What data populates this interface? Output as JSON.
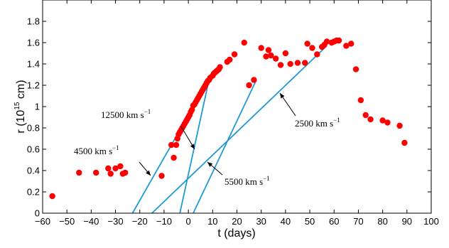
{
  "chart_data": {
    "type": "scatter",
    "xlabel": "t (days)",
    "ylabel": "r (10",
    "ylabel_exp": "15",
    "ylabel_unit": " cm)",
    "xlim": [
      -60,
      100
    ],
    "ylim": [
      0,
      2.0
    ],
    "x_ticks": [
      "-60",
      "-50",
      "-40",
      "-30",
      "-20",
      "-10",
      "0",
      "10",
      "20",
      "30",
      "40",
      "50",
      "60",
      "70",
      "80",
      "90",
      "100"
    ],
    "y_ticks": [
      "0",
      "0.2",
      "0.4",
      "0.6",
      "0.8",
      "1",
      "1.2",
      "1.4",
      "1.6",
      "1.8"
    ],
    "grid": false,
    "colors": {
      "points": "#ff0000",
      "lines": "#1f9ad6",
      "axes": "#000000"
    },
    "series": [
      {
        "marker": "circle",
        "points": [
          [
            -56,
            0.16
          ],
          [
            -45,
            0.38
          ],
          [
            -38,
            0.38
          ],
          [
            -33,
            0.42
          ],
          [
            -32,
            0.37
          ],
          [
            -30,
            0.42
          ],
          [
            -28,
            0.44
          ],
          [
            -27,
            0.37
          ],
          [
            -26,
            0.38
          ],
          [
            -11,
            0.35
          ],
          [
            -7,
            0.64
          ],
          [
            -6,
            0.52
          ],
          [
            -5,
            0.64
          ],
          [
            -4.5,
            0.7
          ],
          [
            -4,
            0.74
          ],
          [
            -3.5,
            0.76
          ],
          [
            -3,
            0.78
          ],
          [
            -2.5,
            0.8
          ],
          [
            -2,
            0.82
          ],
          [
            -1.5,
            0.84
          ],
          [
            -1,
            0.86
          ],
          [
            -0.5,
            0.88
          ],
          [
            0,
            0.9
          ],
          [
            0.5,
            0.92
          ],
          [
            1,
            0.95
          ],
          [
            1.5,
            0.97
          ],
          [
            2,
            1.01
          ],
          [
            2.5,
            1.02
          ],
          [
            3,
            1.04
          ],
          [
            3.5,
            1.06
          ],
          [
            4,
            1.08
          ],
          [
            4.5,
            1.1
          ],
          [
            5,
            1.12
          ],
          [
            5.5,
            1.14
          ],
          [
            6,
            1.16
          ],
          [
            6.5,
            1.18
          ],
          [
            7,
            1.2
          ],
          [
            7.5,
            1.22
          ],
          [
            8,
            1.24
          ],
          [
            8.5,
            1.25
          ],
          [
            9,
            1.27
          ],
          [
            10,
            1.29
          ],
          [
            10.5,
            1.31
          ],
          [
            11,
            1.32
          ],
          [
            11.5,
            1.33
          ],
          [
            12,
            1.34
          ],
          [
            12.5,
            1.35
          ],
          [
            13,
            1.37
          ],
          [
            16,
            1.42
          ],
          [
            17,
            1.44
          ],
          [
            19,
            1.49
          ],
          [
            23,
            1.6
          ],
          [
            25,
            1.2
          ],
          [
            27,
            1.25
          ],
          [
            30,
            1.55
          ],
          [
            32,
            1.47
          ],
          [
            33,
            1.53
          ],
          [
            34,
            1.48
          ],
          [
            36,
            1.45
          ],
          [
            38,
            1.39
          ],
          [
            40,
            1.5
          ],
          [
            42,
            1.4
          ],
          [
            45,
            1.41
          ],
          [
            48,
            1.41
          ],
          [
            49,
            1.59
          ],
          [
            51,
            1.55
          ],
          [
            53,
            1.49
          ],
          [
            55,
            1.56
          ],
          [
            56,
            1.58
          ],
          [
            57,
            1.61
          ],
          [
            59,
            1.6
          ],
          [
            60,
            1.61
          ],
          [
            61,
            1.62
          ],
          [
            62,
            1.62
          ],
          [
            65,
            1.57
          ],
          [
            67,
            1.59
          ],
          [
            69,
            1.35
          ],
          [
            71,
            1.06
          ],
          [
            73,
            0.92
          ],
          [
            75,
            0.88
          ],
          [
            80,
            0.87
          ],
          [
            82,
            0.85
          ],
          [
            87,
            0.82
          ],
          [
            89,
            0.66
          ]
        ]
      }
    ],
    "lines": [
      {
        "label": "4500 km s",
        "x": [
          -23,
          8
        ],
        "y": [
          0,
          1.24
        ]
      },
      {
        "label": "12500 km s",
        "x": [
          -3.5,
          8.5
        ],
        "y": [
          0,
          1.25
        ]
      },
      {
        "label": "5500 km s",
        "x": [
          2,
          28
        ],
        "y": [
          0,
          1.25
        ]
      },
      {
        "label": "2500 km s",
        "x": [
          -15,
          57
        ],
        "y": [
          0,
          1.57
        ]
      }
    ],
    "annotations": [
      {
        "text": "12500 km s",
        "sup": "−1",
        "data_x": 4,
        "data_y": 0.75
      },
      {
        "text": "4500 km s",
        "sup": "−1",
        "data_x": -10,
        "data_y": 0.4
      },
      {
        "text": "5500 km s",
        "sup": "−1",
        "data_x": 9,
        "data_y": 0.58
      },
      {
        "text": "2500 km s",
        "sup": "−1",
        "data_x": 38,
        "data_y": 1.13
      }
    ]
  }
}
